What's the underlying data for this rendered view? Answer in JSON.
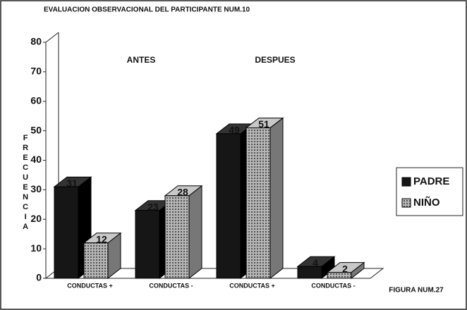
{
  "chart_data": {
    "type": "bar3d",
    "title": "EVALUACION OBSERVACIONAL DEL PARTICIPANTE NUM.10",
    "y_label": "FRECUENCIA",
    "annotations": [
      "ANTES",
      "DESPUES",
      "FIGURA NUM.27"
    ],
    "categories": [
      "CONDUCTAS +",
      "CONDUCTAS -",
      "CONDUCTAS +",
      "CONDUCTAS -"
    ],
    "series": [
      {
        "name": "PADRE",
        "color": "#161616",
        "values": [
          31,
          23,
          49,
          4
        ]
      },
      {
        "name": "NIÑO",
        "color": "#9a9a9a",
        "values": [
          12,
          28,
          51,
          2
        ]
      }
    ],
    "ylim": [
      0,
      80
    ],
    "yticks": [
      0,
      10,
      20,
      30,
      40,
      50,
      60,
      70,
      80
    ],
    "legend": "right"
  }
}
